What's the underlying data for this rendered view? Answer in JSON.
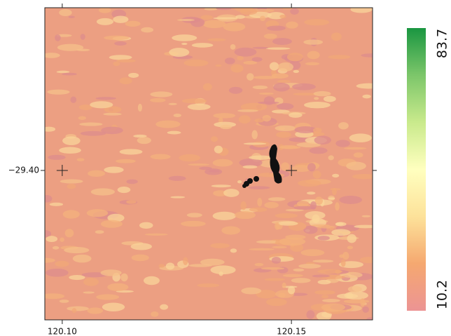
{
  "map": {
    "xlim": [
      120.0962,
      120.1677
    ],
    "ylim": [
      -29.4326,
      -29.3645
    ],
    "xticks": [
      {
        "value": 120.1,
        "label": "120.10"
      },
      {
        "value": 120.15,
        "label": "120.15"
      }
    ],
    "yticks": [
      {
        "value": -29.4,
        "label": "−29.40"
      }
    ],
    "colorbar": {
      "min": 10.2,
      "max": 83.7,
      "colors": [
        "#ec9494",
        "#f5a870",
        "#fde29a",
        "#ffffbf",
        "#c9ea8c",
        "#7cc66a",
        "#1a9641"
      ]
    }
  }
}
